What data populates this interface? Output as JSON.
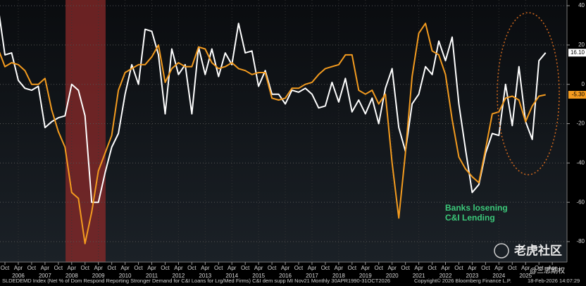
{
  "chart_data": {
    "type": "line",
    "footer": "SLDEDEMD Index (Net % of Dom Respond Reporting Stronger Demand for C&I Loans for Lrg/Med Firms) C&I dem supp MI Nov21 Monthly 30APR1990-31OCT2026",
    "copyright": "Copyright© 2026 Bloomberg Finance L.P.",
    "timestamp": "18-Feb-2026 14:07:29",
    "annotation": [
      "Banks losening",
      "C&I Lending"
    ],
    "watermark": "老虎社区",
    "watermark_handle": "@三思期权",
    "xlim": [
      2005.565,
      2026.8
    ],
    "ylim": [
      -90.4,
      42.9
    ],
    "yticks": [
      40,
      20,
      0,
      -20,
      -40,
      -60,
      -80
    ],
    "grid": true,
    "shaded_regions": [
      {
        "start": 2008.02,
        "end": 2009.52,
        "color": "#8b2a2a"
      }
    ],
    "xticks": [
      {
        "value": 2005.75,
        "label": "Oct"
      },
      {
        "value": 2006.25,
        "label": "Apr"
      },
      {
        "value": 2006.75,
        "label": "Oct"
      },
      {
        "value": 2007.25,
        "label": "Apr"
      },
      {
        "value": 2007.75,
        "label": "Oct"
      },
      {
        "value": 2008.25,
        "label": "Apr"
      },
      {
        "value": 2008.75,
        "label": "Oct"
      },
      {
        "value": 2009.25,
        "label": "Apr"
      },
      {
        "value": 2009.75,
        "label": "Oct"
      },
      {
        "value": 2010.25,
        "label": "Apr"
      },
      {
        "value": 2010.75,
        "label": "Oct"
      },
      {
        "value": 2011.25,
        "label": "Apr"
      },
      {
        "value": 2011.75,
        "label": "Oct"
      },
      {
        "value": 2012.25,
        "label": "Apr"
      },
      {
        "value": 2012.75,
        "label": "Oct"
      },
      {
        "value": 2013.25,
        "label": "Apr"
      },
      {
        "value": 2013.75,
        "label": "Oct"
      },
      {
        "value": 2014.25,
        "label": "Apr"
      },
      {
        "value": 2014.75,
        "label": "Oct"
      },
      {
        "value": 2015.25,
        "label": "Apr"
      },
      {
        "value": 2015.75,
        "label": "Oct"
      },
      {
        "value": 2016.25,
        "label": "Apr"
      },
      {
        "value": 2016.75,
        "label": "Oct"
      },
      {
        "value": 2017.25,
        "label": "Apr"
      },
      {
        "value": 2017.75,
        "label": "Oct"
      },
      {
        "value": 2018.25,
        "label": "Apr"
      },
      {
        "value": 2018.75,
        "label": "Oct"
      },
      {
        "value": 2019.25,
        "label": "Apr"
      },
      {
        "value": 2019.75,
        "label": "Oct"
      },
      {
        "value": 2020.25,
        "label": "Apr"
      },
      {
        "value": 2020.75,
        "label": "Oct"
      },
      {
        "value": 2021.25,
        "label": "Apr"
      },
      {
        "value": 2021.75,
        "label": "Oct"
      },
      {
        "value": 2022.25,
        "label": "Apr"
      },
      {
        "value": 2022.75,
        "label": "Oct"
      },
      {
        "value": 2023.25,
        "label": "Apr"
      },
      {
        "value": 2023.75,
        "label": "Oct"
      },
      {
        "value": 2024.25,
        "label": "Apr"
      },
      {
        "value": 2024.75,
        "label": "Oct"
      },
      {
        "value": 2025.25,
        "label": "Apr"
      },
      {
        "value": 2025.75,
        "label": "Oct"
      },
      {
        "value": 2026.25,
        "label": "Apr"
      }
    ],
    "year_labels": [
      {
        "value": 2006.25,
        "label": "2006"
      },
      {
        "value": 2007.25,
        "label": "2007"
      },
      {
        "value": 2008.25,
        "label": "2008"
      },
      {
        "value": 2009.25,
        "label": "2009"
      },
      {
        "value": 2010.25,
        "label": "2010"
      },
      {
        "value": 2011.25,
        "label": "2011"
      },
      {
        "value": 2012.25,
        "label": "2012"
      },
      {
        "value": 2013.25,
        "label": "2013"
      },
      {
        "value": 2014.25,
        "label": "2014"
      },
      {
        "value": 2015.25,
        "label": "2015"
      },
      {
        "value": 2016.25,
        "label": "2016"
      },
      {
        "value": 2017.25,
        "label": "2017"
      },
      {
        "value": 2018.25,
        "label": "2018"
      },
      {
        "value": 2019.25,
        "label": "2019"
      },
      {
        "value": 2020.25,
        "label": "2020"
      },
      {
        "value": 2021.25,
        "label": "2021"
      },
      {
        "value": 2022.25,
        "label": "2022"
      },
      {
        "value": 2023.25,
        "label": "2023"
      },
      {
        "value": 2024.25,
        "label": "2024"
      },
      {
        "value": 2025.25,
        "label": "2025"
      }
    ],
    "x": [
      2005.5,
      2005.75,
      2006,
      2006.25,
      2006.5,
      2006.75,
      2007,
      2007.25,
      2007.5,
      2007.75,
      2008,
      2008.25,
      2008.5,
      2008.75,
      2009,
      2009.25,
      2009.5,
      2009.75,
      2010,
      2010.25,
      2010.5,
      2010.75,
      2011,
      2011.25,
      2011.5,
      2011.75,
      2012,
      2012.25,
      2012.5,
      2012.75,
      2013,
      2013.25,
      2013.5,
      2013.75,
      2014,
      2014.25,
      2014.5,
      2014.75,
      2015,
      2015.25,
      2015.5,
      2015.75,
      2016,
      2016.25,
      2016.5,
      2016.75,
      2017,
      2017.25,
      2017.5,
      2017.75,
      2018,
      2018.25,
      2018.5,
      2018.75,
      2019,
      2019.25,
      2019.5,
      2019.75,
      2020,
      2020.25,
      2020.5,
      2020.75,
      2021,
      2021.25,
      2021.5,
      2021.75,
      2022,
      2022.25,
      2022.5,
      2022.75,
      2023,
      2023.25,
      2023.5,
      2023.75,
      2024,
      2024.25,
      2024.5,
      2024.75,
      2025,
      2025.25,
      2025.5,
      2025.75,
      2026
    ],
    "series": [
      {
        "color": "#ffffff",
        "last_value_label": "16.10",
        "values": [
          39,
          15,
          16,
          2,
          -2,
          -3,
          -1,
          -22,
          -19,
          -17,
          -16,
          0,
          -3,
          -16,
          -60,
          -60,
          -45,
          -32,
          -25,
          -5,
          10,
          0,
          28,
          27,
          15,
          -15,
          18,
          5,
          10,
          -15,
          19,
          5,
          18,
          4,
          16,
          10,
          31,
          16,
          17,
          -1,
          7,
          -5,
          -5,
          -10,
          -3,
          -4,
          -2,
          -5,
          -12,
          -11,
          1,
          -9,
          3,
          -14,
          -8,
          -15,
          -7,
          -20,
          -2,
          8,
          -22,
          -34,
          -10,
          -5,
          9,
          5,
          22,
          12,
          24,
          -10,
          -33,
          -55,
          -51,
          -35,
          -25,
          -26,
          0,
          -21,
          9,
          -19,
          -28,
          12,
          16.1
        ]
      },
      {
        "color": "#f39b1f",
        "last_value_label": "-5.30",
        "values": [
          18,
          9,
          11,
          10,
          7,
          0,
          0,
          3,
          -13,
          -24,
          -32,
          -55,
          -58,
          -81,
          -65,
          -44,
          -35,
          -26,
          -3,
          6,
          8,
          10,
          10,
          14,
          20,
          1,
          8,
          11,
          9,
          9,
          19,
          18,
          11,
          8,
          9,
          11,
          8,
          7,
          5,
          6,
          6,
          -7,
          -8,
          -7,
          -2,
          -2,
          0,
          1,
          5,
          8,
          9,
          10,
          15,
          15,
          -3,
          -5,
          -3,
          -10,
          -5,
          -40,
          -68,
          -35,
          4,
          26,
          31,
          17,
          15,
          5,
          -18,
          -37,
          -43,
          -47,
          -50,
          -33,
          -15,
          -14,
          -7,
          -6,
          -8,
          -19,
          -11,
          -6,
          -5.3
        ]
      }
    ]
  }
}
